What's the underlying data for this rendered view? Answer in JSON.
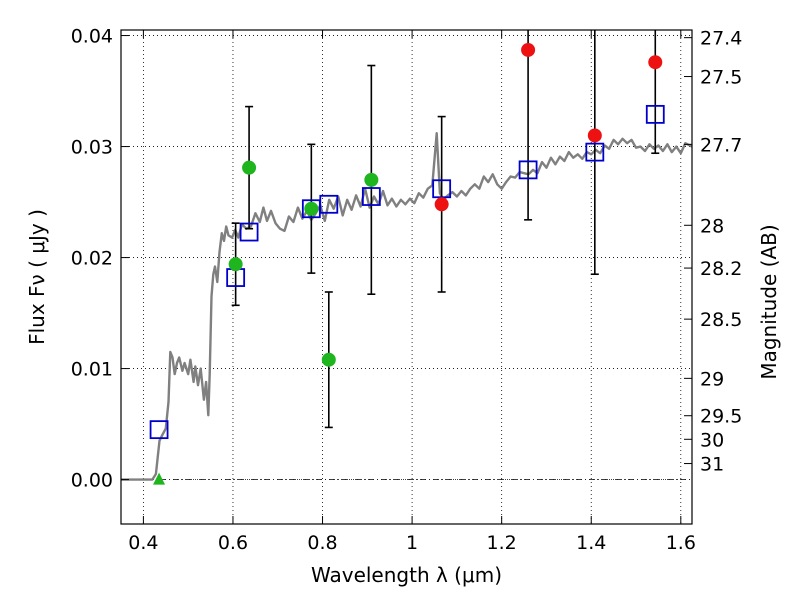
{
  "chart_data": {
    "type": "scatter",
    "xlabel": "Wavelength  λ (μm)",
    "ylabel": "Flux  Fν  ( μJy )",
    "ylabel_right": "Magnitude (AB)",
    "xlim": [
      0.35,
      1.625
    ],
    "ylim": [
      -0.004,
      0.0405
    ],
    "grid": true,
    "x_ticks": [
      0.4,
      0.6,
      0.8,
      1.0,
      1.2,
      1.4,
      1.6
    ],
    "x_tick_labels": [
      "0.4",
      "0.6",
      "0.8",
      "1",
      "1.2",
      "1.4",
      "1.6"
    ],
    "y_ticks": [
      0.0,
      0.01,
      0.02,
      0.03,
      0.04
    ],
    "y_tick_labels": [
      "0.00",
      "0.01",
      "0.02",
      "0.03",
      "0.04"
    ],
    "mag_ticks": [
      {
        "mag": 27.4,
        "label": "27.4"
      },
      {
        "mag": 27.5,
        "label": "27.5"
      },
      {
        "mag": 27.7,
        "label": "27.7"
      },
      {
        "mag": 28,
        "label": "28"
      },
      {
        "mag": 28.2,
        "label": "28.2"
      },
      {
        "mag": 28.5,
        "label": "28.5"
      },
      {
        "mag": 29,
        "label": "29"
      },
      {
        "mag": 29.5,
        "label": "29.5"
      },
      {
        "mag": 30,
        "label": "30"
      },
      {
        "mag": 31,
        "label": "31"
      }
    ],
    "colors": {
      "model": "#808080",
      "green": "#1fb51f",
      "red": "#ee1111",
      "box": "#0000cc",
      "errorbar": "#000000"
    },
    "series": [
      {
        "marker": "circle",
        "color": "green",
        "points": [
          {
            "x": 0.606,
            "y": 0.0194,
            "err": 0.0037
          },
          {
            "x": 0.636,
            "y": 0.0281,
            "err": 0.0055
          },
          {
            "x": 0.775,
            "y": 0.0244,
            "err": 0.0058
          },
          {
            "x": 0.814,
            "y": 0.0108,
            "err": 0.0061
          },
          {
            "x": 0.909,
            "y": 0.027,
            "err": 0.0103
          },
          {
            "x": 0.435,
            "y": 0.0,
            "err": 0.0,
            "marker": "triangle"
          }
        ]
      },
      {
        "marker": "circle",
        "color": "red",
        "points": [
          {
            "x": 1.066,
            "y": 0.0248,
            "err": 0.0079
          },
          {
            "x": 1.259,
            "y": 0.0387,
            "err": 0.0153
          },
          {
            "x": 1.408,
            "y": 0.031,
            "err": 0.0125
          },
          {
            "x": 1.543,
            "y": 0.0376,
            "err": 0.0082
          }
        ]
      },
      {
        "marker": "open-square",
        "color": "box",
        "points": [
          {
            "x": 0.435,
            "y": 0.0045
          },
          {
            "x": 0.606,
            "y": 0.0182
          },
          {
            "x": 0.636,
            "y": 0.0223
          },
          {
            "x": 0.775,
            "y": 0.0244
          },
          {
            "x": 0.814,
            "y": 0.0248
          },
          {
            "x": 0.909,
            "y": 0.0255
          },
          {
            "x": 1.066,
            "y": 0.0262
          },
          {
            "x": 1.259,
            "y": 0.0279
          },
          {
            "x": 1.408,
            "y": 0.0295
          },
          {
            "x": 1.543,
            "y": 0.0329
          }
        ]
      }
    ],
    "model_spectrum": [
      [
        0.35,
        0.0
      ],
      [
        0.42,
        0.0
      ],
      [
        0.428,
        0.0005
      ],
      [
        0.436,
        0.0035
      ],
      [
        0.442,
        0.004
      ],
      [
        0.45,
        0.0046
      ],
      [
        0.456,
        0.007
      ],
      [
        0.46,
        0.0115
      ],
      [
        0.465,
        0.011
      ],
      [
        0.47,
        0.0095
      ],
      [
        0.475,
        0.0105
      ],
      [
        0.48,
        0.011
      ],
      [
        0.487,
        0.0098
      ],
      [
        0.492,
        0.0105
      ],
      [
        0.5,
        0.0095
      ],
      [
        0.505,
        0.0108
      ],
      [
        0.512,
        0.0088
      ],
      [
        0.516,
        0.0102
      ],
      [
        0.522,
        0.0085
      ],
      [
        0.528,
        0.01
      ],
      [
        0.535,
        0.0072
      ],
      [
        0.54,
        0.0088
      ],
      [
        0.545,
        0.0058
      ],
      [
        0.548,
        0.0095
      ],
      [
        0.552,
        0.0165
      ],
      [
        0.556,
        0.0185
      ],
      [
        0.56,
        0.0192
      ],
      [
        0.565,
        0.0178
      ],
      [
        0.57,
        0.0205
      ],
      [
        0.575,
        0.0222
      ],
      [
        0.58,
        0.0215
      ],
      [
        0.585,
        0.0228
      ],
      [
        0.59,
        0.022
      ],
      [
        0.598,
        0.0218
      ],
      [
        0.605,
        0.0225
      ],
      [
        0.612,
        0.0218
      ],
      [
        0.62,
        0.023
      ],
      [
        0.63,
        0.0226
      ],
      [
        0.64,
        0.0228
      ],
      [
        0.65,
        0.024
      ],
      [
        0.66,
        0.0232
      ],
      [
        0.668,
        0.0245
      ],
      [
        0.676,
        0.0233
      ],
      [
        0.685,
        0.0242
      ],
      [
        0.695,
        0.0231
      ],
      [
        0.705,
        0.0226
      ],
      [
        0.715,
        0.0224
      ],
      [
        0.725,
        0.0237
      ],
      [
        0.735,
        0.0232
      ],
      [
        0.745,
        0.0245
      ],
      [
        0.755,
        0.0235
      ],
      [
        0.765,
        0.0242
      ],
      [
        0.775,
        0.0234
      ],
      [
        0.785,
        0.024
      ],
      [
        0.795,
        0.0247
      ],
      [
        0.805,
        0.0233
      ],
      [
        0.815,
        0.0252
      ],
      [
        0.825,
        0.0244
      ],
      [
        0.835,
        0.0255
      ],
      [
        0.845,
        0.0238
      ],
      [
        0.855,
        0.0252
      ],
      [
        0.865,
        0.0243
      ],
      [
        0.875,
        0.0256
      ],
      [
        0.885,
        0.0246
      ],
      [
        0.895,
        0.0262
      ],
      [
        0.905,
        0.0245
      ],
      [
        0.915,
        0.0255
      ],
      [
        0.925,
        0.0248
      ],
      [
        0.935,
        0.026
      ],
      [
        0.945,
        0.0247
      ],
      [
        0.955,
        0.0253
      ],
      [
        0.965,
        0.0246
      ],
      [
        0.975,
        0.0252
      ],
      [
        0.985,
        0.0248
      ],
      [
        0.995,
        0.0253
      ],
      [
        1.005,
        0.0249
      ],
      [
        1.015,
        0.0258
      ],
      [
        1.025,
        0.0254
      ],
      [
        1.035,
        0.0262
      ],
      [
        1.045,
        0.0265
      ],
      [
        1.055,
        0.0312
      ],
      [
        1.062,
        0.0258
      ],
      [
        1.07,
        0.0252
      ],
      [
        1.08,
        0.0256
      ],
      [
        1.09,
        0.0259
      ],
      [
        1.1,
        0.0255
      ],
      [
        1.11,
        0.026
      ],
      [
        1.12,
        0.0256
      ],
      [
        1.13,
        0.0262
      ],
      [
        1.14,
        0.0266
      ],
      [
        1.15,
        0.0262
      ],
      [
        1.16,
        0.0273
      ],
      [
        1.17,
        0.0268
      ],
      [
        1.18,
        0.0275
      ],
      [
        1.19,
        0.0266
      ],
      [
        1.2,
        0.0262
      ],
      [
        1.21,
        0.0268
      ],
      [
        1.22,
        0.0273
      ],
      [
        1.23,
        0.0272
      ],
      [
        1.24,
        0.0277
      ],
      [
        1.25,
        0.0276
      ],
      [
        1.26,
        0.0275
      ],
      [
        1.27,
        0.0279
      ],
      [
        1.28,
        0.0276
      ],
      [
        1.29,
        0.0286
      ],
      [
        1.3,
        0.0281
      ],
      [
        1.31,
        0.029
      ],
      [
        1.32,
        0.0284
      ],
      [
        1.33,
        0.0291
      ],
      [
        1.34,
        0.0287
      ],
      [
        1.35,
        0.0295
      ],
      [
        1.36,
        0.029
      ],
      [
        1.37,
        0.0293
      ],
      [
        1.38,
        0.0289
      ],
      [
        1.39,
        0.0295
      ],
      [
        1.4,
        0.0293
      ],
      [
        1.41,
        0.0297
      ],
      [
        1.42,
        0.0294
      ],
      [
        1.43,
        0.0301
      ],
      [
        1.44,
        0.0298
      ],
      [
        1.45,
        0.0306
      ],
      [
        1.46,
        0.0302
      ],
      [
        1.47,
        0.0307
      ],
      [
        1.48,
        0.0303
      ],
      [
        1.49,
        0.0306
      ],
      [
        1.5,
        0.0299
      ],
      [
        1.51,
        0.03
      ],
      [
        1.52,
        0.0296
      ],
      [
        1.53,
        0.0302
      ],
      [
        1.54,
        0.0298
      ],
      [
        1.55,
        0.0301
      ],
      [
        1.56,
        0.0296
      ],
      [
        1.57,
        0.0302
      ],
      [
        1.58,
        0.0295
      ],
      [
        1.59,
        0.03
      ],
      [
        1.6,
        0.0294
      ],
      [
        1.61,
        0.0303
      ],
      [
        1.625,
        0.03
      ]
    ]
  }
}
